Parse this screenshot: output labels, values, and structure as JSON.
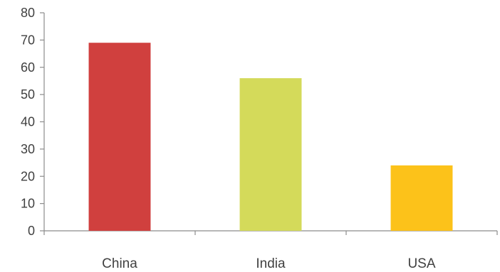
{
  "chart_data": {
    "type": "bar",
    "categories": [
      "China",
      "India",
      "USA"
    ],
    "values": [
      69,
      56,
      24
    ],
    "colors": [
      "#d0403e",
      "#d4da5a",
      "#fcc21a"
    ],
    "ylim": [
      0,
      80
    ],
    "yticks": [
      "0",
      "10",
      "20",
      "30",
      "40",
      "50",
      "60",
      "70",
      "80"
    ],
    "title": "",
    "xlabel": "",
    "ylabel": "",
    "grid": false,
    "legend": "none"
  }
}
